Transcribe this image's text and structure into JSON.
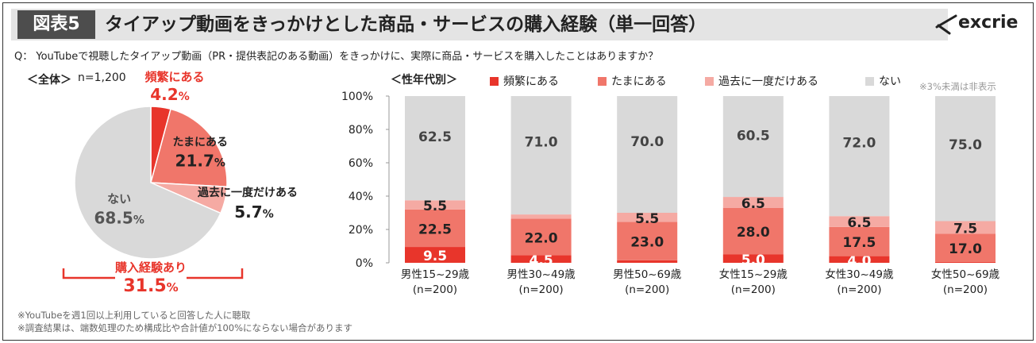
{
  "header": {
    "figure_label": "図表5",
    "title": "タイアップ動画をきっかけとした商品・サービスの購入経験（単一回答）",
    "logo_text": "excrie"
  },
  "question": "Q： YouTubeで視聴したタイアップ動画（PR・提供表記のある動画）をきっかけに、実際に商品・サービスを購入したことはありますか？",
  "overall": {
    "label": "＜全体＞",
    "n": "n=1,200"
  },
  "by_age_label": "＜性年代別＞",
  "legend_note": "※3%未満は非表示",
  "colors": {
    "frequent": "#e8352b",
    "sometimes": "#f0766a",
    "once": "#f5aaa3",
    "never": "#d9d9d9",
    "highlight": "#e8352b"
  },
  "footnotes": [
    "※YouTubeを週1回以上利用していると回答した人に聴取",
    "※調査結果は、端数処理のため構成比や合計値が100%にならない場合があります"
  ],
  "chart_data": [
    {
      "type": "pie",
      "title": "＜全体＞ n=1,200",
      "labels": [
        "頻繁にある",
        "たまにある",
        "過去に一度だけある",
        "ない"
      ],
      "values": [
        4.2,
        21.7,
        5.7,
        68.5
      ],
      "value_labels": [
        "4.2",
        "21.7",
        "5.7",
        "68.5"
      ],
      "unit": "%",
      "summary": {
        "label": "購入経験あり",
        "value": "31.5",
        "unit": "%"
      }
    },
    {
      "type": "bar",
      "stacked": true,
      "title": "＜性年代別＞",
      "categories": [
        "男性15~29歳",
        "男性30~49歳",
        "男性50~69歳",
        "女性15~29歳",
        "女性30~49歳",
        "女性50~69歳"
      ],
      "category_ns": [
        "(n=200)",
        "(n=200)",
        "(n=200)",
        "(n=200)",
        "(n=200)",
        "(n=200)"
      ],
      "series": [
        {
          "name": "頻繁にある",
          "values": [
            9.5,
            4.5,
            1.5,
            5.0,
            4.0,
            0.5
          ],
          "labels": [
            "9.5",
            "4.5",
            "",
            "5.0",
            "4.0",
            ""
          ]
        },
        {
          "name": "たまにある",
          "values": [
            22.5,
            22.0,
            23.0,
            28.0,
            17.5,
            17.0
          ],
          "labels": [
            "22.5",
            "22.0",
            "23.0",
            "28.0",
            "17.5",
            "17.0"
          ]
        },
        {
          "name": "過去に一度だけある",
          "values": [
            5.5,
            2.5,
            5.5,
            6.5,
            6.5,
            7.5
          ],
          "labels": [
            "5.5",
            "",
            "5.5",
            "6.5",
            "6.5",
            "7.5"
          ]
        },
        {
          "name": "ない",
          "values": [
            62.5,
            71.0,
            70.0,
            60.5,
            72.0,
            75.0
          ],
          "labels": [
            "62.5",
            "71.0",
            "70.0",
            "60.5",
            "72.0",
            "75.0"
          ]
        }
      ],
      "ylim": [
        0,
        100
      ],
      "yticks": [
        "0%",
        "20%",
        "40%",
        "60%",
        "80%",
        "100%"
      ],
      "ytick_values": [
        0,
        20,
        40,
        60,
        80,
        100
      ],
      "grid": false
    }
  ]
}
